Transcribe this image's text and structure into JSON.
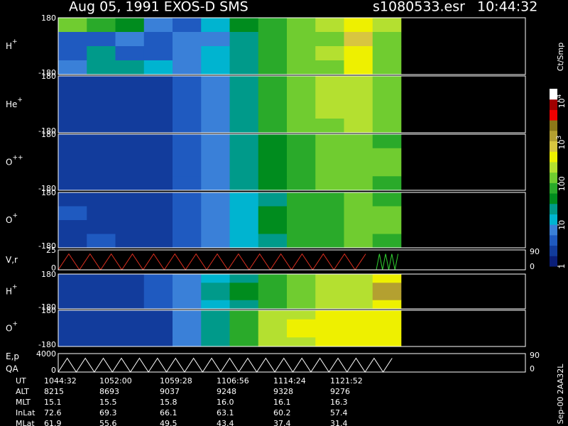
{
  "header": {
    "title": "Aug 05, 1991   EXOS-D SMS",
    "file": "s1080533.esr",
    "time": "10:44:32"
  },
  "colorbar": {
    "label": "Ct/Smp",
    "clim": [
      1,
      20000
    ],
    "log": true,
    "colors": [
      "#0a1e78",
      "#123c9c",
      "#1f5ac0",
      "#3a80d8",
      "#00b4d0",
      "#009a8a",
      "#008c1e",
      "#2aaa2a",
      "#70cc30",
      "#b4e030",
      "#eef000",
      "#d8c640",
      "#b4a030",
      "#8c7818",
      "#ee0000",
      "#a00000",
      "#ffffff"
    ],
    "ticks": [
      {
        "value": 10000,
        "label": "10",
        "exponent": "4"
      },
      {
        "value": 1000,
        "label": "10",
        "exponent": "3"
      },
      100,
      10,
      1
    ]
  },
  "panels": [
    {
      "label": "H",
      "sup": "+",
      "ylim": [
        -180,
        180
      ],
      "yticks": [
        180,
        -180
      ],
      "grid": [
        [
          150,
          60,
          40,
          8,
          5,
          15,
          40,
          80,
          150,
          200,
          600,
          200
        ],
        [
          5,
          4,
          6,
          5,
          8,
          10,
          30,
          60,
          120,
          180,
          800,
          150
        ],
        [
          4,
          30,
          5,
          4,
          6,
          15,
          30,
          70,
          130,
          200,
          500,
          180
        ],
        [
          8,
          20,
          30,
          15,
          6,
          12,
          30,
          60,
          120,
          180,
          400,
          150
        ]
      ]
    },
    {
      "label": "He",
      "sup": "+",
      "ylim": [
        -180,
        180
      ],
      "yticks": [
        180,
        -180
      ],
      "grid": [
        [
          3,
          3,
          3,
          3,
          5,
          8,
          20,
          60,
          120,
          200,
          250,
          150
        ],
        [
          2,
          2,
          2,
          2,
          4,
          10,
          30,
          70,
          130,
          200,
          250,
          150
        ],
        [
          2,
          2,
          2,
          2,
          4,
          10,
          30,
          70,
          130,
          200,
          240,
          150
        ],
        [
          2,
          2,
          2,
          3,
          4,
          8,
          20,
          60,
          120,
          180,
          220,
          150
        ]
      ]
    },
    {
      "label": "O",
      "sup": "++",
      "ylim": [
        -180,
        180
      ],
      "yticks": [
        180,
        -180
      ],
      "grid": [
        [
          3,
          3,
          3,
          3,
          4,
          8,
          20,
          40,
          80,
          120,
          150,
          100
        ],
        [
          2,
          3,
          2,
          3,
          5,
          10,
          25,
          50,
          90,
          130,
          160,
          110
        ],
        [
          2,
          2,
          2,
          3,
          5,
          10,
          25,
          50,
          90,
          130,
          160,
          110
        ],
        [
          3,
          3,
          2,
          3,
          4,
          8,
          20,
          40,
          80,
          120,
          150,
          100
        ]
      ]
    },
    {
      "label": "O",
      "sup": "+",
      "ylim": [
        -180,
        180
      ],
      "yticks": [
        180,
        -180
      ],
      "grid": [
        [
          3,
          3,
          3,
          3,
          5,
          8,
          15,
          30,
          60,
          90,
          120,
          100
        ],
        [
          4,
          3,
          3,
          3,
          5,
          9,
          18,
          35,
          70,
          100,
          130,
          110
        ],
        [
          3,
          3,
          3,
          3,
          5,
          9,
          18,
          35,
          70,
          100,
          130,
          110
        ],
        [
          3,
          4,
          3,
          3,
          5,
          8,
          15,
          30,
          60,
          90,
          120,
          100
        ]
      ]
    },
    {
      "label": "V,r",
      "ylim": [
        0,
        25
      ],
      "yticks": [
        25,
        0
      ],
      "y2ticks": [
        90,
        0
      ],
      "series": [
        {
          "color": "#e03020",
          "values": [
            0,
            20,
            0,
            20,
            0,
            20,
            0,
            20,
            0,
            20,
            0,
            20,
            0,
            20,
            0,
            20,
            0,
            20,
            0,
            20,
            0,
            20,
            0,
            20,
            0,
            20,
            0,
            20,
            0,
            20
          ]
        },
        {
          "color": "#30d030",
          "values": [
            0,
            20,
            0,
            20,
            0,
            20,
            0,
            20
          ]
        }
      ]
    },
    {
      "label": "H",
      "sup": "+",
      "ylim": [
        -180,
        180
      ],
      "yticks": [
        180,
        -180
      ],
      "grid": [
        [
          2,
          2,
          3,
          5,
          8,
          15,
          30,
          80,
          150,
          200,
          300,
          500
        ],
        [
          2,
          2,
          3,
          5,
          9,
          20,
          40,
          90,
          160,
          220,
          300,
          1500
        ],
        [
          2,
          3,
          3,
          5,
          9,
          20,
          40,
          90,
          160,
          220,
          300,
          1500
        ],
        [
          2,
          2,
          3,
          5,
          8,
          15,
          30,
          80,
          150,
          200,
          300,
          500
        ]
      ]
    },
    {
      "label": "O",
      "sup": "+",
      "ylim": [
        -180,
        180
      ],
      "yticks": [
        180,
        -180
      ],
      "grid": [
        [
          2,
          2,
          2,
          3,
          6,
          20,
          80,
          200,
          300,
          400,
          500,
          500
        ],
        [
          2,
          2,
          2,
          3,
          6,
          25,
          100,
          250,
          350,
          450,
          550,
          550
        ],
        [
          2,
          2,
          2,
          3,
          6,
          25,
          100,
          250,
          350,
          450,
          550,
          550
        ],
        [
          2,
          2,
          2,
          3,
          6,
          20,
          80,
          200,
          300,
          400,
          500,
          500
        ]
      ]
    },
    {
      "label": "E,p",
      "label2": "QA",
      "ylim": [
        0,
        4000
      ],
      "yticks": [
        4000,
        0
      ],
      "y2ticks": [
        90,
        0
      ],
      "series": [
        {
          "color": "#ffffff",
          "values": [
            0,
            3000,
            0,
            3000,
            0,
            3000,
            0,
            3000,
            0,
            3000,
            0,
            3000,
            0,
            3000,
            0,
            3000,
            0,
            3000,
            0,
            3000,
            0,
            3000,
            0,
            3000,
            0,
            3000,
            0,
            3000,
            0,
            3000,
            0,
            3000,
            0,
            3000,
            0,
            3000,
            0,
            3000
          ]
        }
      ]
    }
  ],
  "table": {
    "rows": [
      [
        "UT",
        "1044:32",
        "1052:00",
        "1059:28",
        "1106:56",
        "1114:24",
        "1121:52"
      ],
      [
        "ALT",
        "8215",
        "8693",
        "9037",
        "9248",
        "9328",
        "9276"
      ],
      [
        "MLT",
        "15.1",
        "15.5",
        "15.8",
        "16.0",
        "16.1",
        "16.3"
      ],
      [
        "InLat",
        "72.6",
        "69.3",
        "66.1",
        "63.1",
        "60.2",
        "57.4"
      ],
      [
        "MLat",
        "61.9",
        "55.6",
        "49.5",
        "43.4",
        "37.4",
        "31.4"
      ]
    ]
  },
  "footer": "Sep-00  2AA32L"
}
